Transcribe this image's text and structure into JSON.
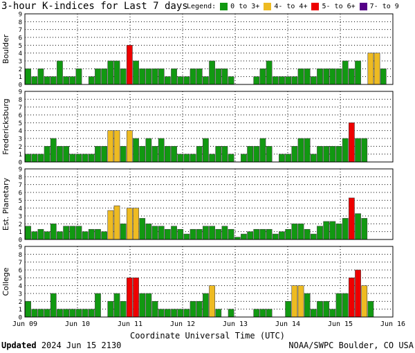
{
  "header": {
    "title": "3-hour K-indices for Last 7 days",
    "legend_label": "Legend:"
  },
  "legend": [
    {
      "label": "0 to 3+",
      "color": "#119911"
    },
    {
      "label": "4- to 4+",
      "color": "#eebb22"
    },
    {
      "label": "5- to 6+",
      "color": "#ee0000"
    },
    {
      "label": "7- to 9",
      "color": "#550088"
    }
  ],
  "footer": {
    "updated_label": "Updated",
    "updated_value": "2024 Jun 15 2130",
    "credit": "NOAA/SWPC Boulder, CO USA"
  },
  "chart_data": [
    {
      "type": "bar",
      "ylabel": "Boulder",
      "ylim": [
        0,
        9
      ],
      "y_ticks": [
        "0",
        "1",
        "2",
        "3",
        "4",
        "5",
        "6",
        "7",
        "8",
        "9"
      ],
      "x_ticks": [
        "Jun 09",
        "Jun 10",
        "Jun 11",
        "Jun 12",
        "Jun 13",
        "Jun 14",
        "Jun 15",
        "Jun 16"
      ],
      "values": [
        2,
        1,
        2,
        1,
        1,
        3,
        1,
        1,
        2,
        0,
        1,
        2,
        2,
        3,
        3,
        2,
        5,
        3,
        2,
        2,
        2,
        2,
        1,
        2,
        1,
        1,
        2,
        2,
        1,
        3,
        2,
        2,
        1,
        0,
        0,
        0,
        1,
        2,
        3,
        1,
        1,
        1,
        1,
        2,
        2,
        1,
        2,
        2,
        2,
        2,
        3,
        2,
        3,
        0,
        4,
        4,
        2,
        0
      ]
    },
    {
      "type": "bar",
      "ylabel": "Fredericksburg",
      "ylim": [
        0,
        9
      ],
      "y_ticks": [
        "0",
        "1",
        "2",
        "3",
        "4",
        "5",
        "6",
        "7",
        "8",
        "9"
      ],
      "x_ticks": [
        "Jun 09",
        "Jun 10",
        "Jun 11",
        "Jun 12",
        "Jun 13",
        "Jun 14",
        "Jun 15",
        "Jun 16"
      ],
      "values": [
        1,
        1,
        1,
        2,
        3,
        2,
        2,
        1,
        1,
        1,
        1,
        2,
        2,
        4,
        4,
        2,
        4,
        3,
        2,
        3,
        2,
        3,
        2,
        2,
        1,
        1,
        1,
        2,
        3,
        1,
        2,
        2,
        1,
        0,
        1,
        2,
        2,
        3,
        2,
        0,
        1,
        1,
        2,
        3,
        3,
        1,
        2,
        2,
        2,
        2,
        3,
        5,
        3,
        3,
        0,
        0,
        0,
        0
      ]
    },
    {
      "type": "bar",
      "ylabel": "Est. Planetary",
      "ylim": [
        0,
        9
      ],
      "y_ticks": [
        "0",
        "1",
        "2",
        "3",
        "4",
        "5",
        "6",
        "7",
        "8",
        "9"
      ],
      "x_ticks": [
        "Jun 09",
        "Jun 10",
        "Jun 11",
        "Jun 12",
        "Jun 13",
        "Jun 14",
        "Jun 15",
        "Jun 16"
      ],
      "values": [
        1.7,
        1,
        1.3,
        1,
        2,
        1,
        1.7,
        1.7,
        1.7,
        1,
        1.3,
        1.3,
        1,
        3.7,
        4.3,
        2,
        4,
        4,
        2.7,
        2,
        1.7,
        1.7,
        1.3,
        1.7,
        1.3,
        0.7,
        1.3,
        1.3,
        1.7,
        1.7,
        1.3,
        1.7,
        1.3,
        0.3,
        0.7,
        1,
        1.3,
        1.3,
        1.3,
        0.7,
        1,
        1.3,
        2,
        2,
        1.3,
        0.7,
        1.7,
        2.3,
        2.3,
        2,
        2.7,
        5.3,
        3.3,
        2.7,
        0,
        0,
        0,
        0
      ]
    },
    {
      "type": "bar",
      "ylabel": "College",
      "ylim": [
        0,
        9
      ],
      "y_ticks": [
        "0",
        "1",
        "2",
        "3",
        "4",
        "5",
        "6",
        "7",
        "8",
        "9"
      ],
      "x_ticks": [
        "Jun 09",
        "Jun 10",
        "Jun 11",
        "Jun 12",
        "Jun 13",
        "Jun 14",
        "Jun 15",
        "Jun 16"
      ],
      "values": [
        2,
        1,
        1,
        1,
        3,
        1,
        1,
        1,
        1,
        1,
        1,
        3,
        0,
        2,
        3,
        2,
        5,
        5,
        3,
        3,
        2,
        1,
        1,
        1,
        1,
        1,
        2,
        2,
        3,
        4,
        1,
        0,
        1,
        0,
        0,
        0,
        1,
        1,
        1,
        0,
        0,
        2,
        4,
        4,
        3,
        1,
        2,
        2,
        1,
        3,
        3,
        5,
        6,
        4,
        2,
        0,
        0,
        0
      ]
    }
  ],
  "x_axis": {
    "label": "Coordinate Universal Time (UTC)"
  }
}
